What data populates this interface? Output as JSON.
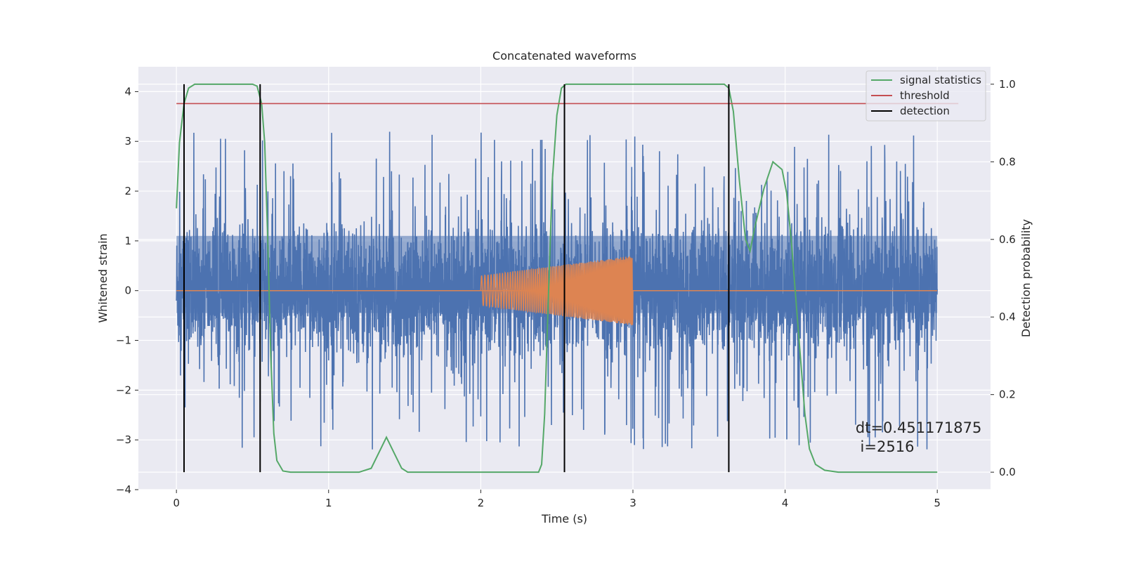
{
  "chart_data": {
    "type": "line",
    "title": "Concatenated waveforms",
    "xlabel": "Time (s)",
    "ylabel": "Whitened strain",
    "y2label": "Detection probability",
    "xlim": [
      -0.25,
      5.35
    ],
    "ylim": [
      -4.0,
      4.5
    ],
    "y2lim": [
      -0.045,
      1.045
    ],
    "xticks": [
      0,
      1,
      2,
      3,
      4,
      5
    ],
    "xtick_labels": [
      "0",
      "1",
      "2",
      "3",
      "4",
      "5"
    ],
    "yticks": [
      -4,
      -3,
      -2,
      -1,
      0,
      1,
      2,
      3,
      4
    ],
    "ytick_labels": [
      "−4",
      "−3",
      "−2",
      "−1",
      "0",
      "1",
      "2",
      "3",
      "4"
    ],
    "y2ticks": [
      0.0,
      0.2,
      0.4,
      0.6,
      0.8,
      1.0
    ],
    "y2tick_labels": [
      "0.0",
      "0.2",
      "0.4",
      "0.6",
      "0.8",
      "1.0"
    ],
    "grid": true,
    "legend_position": "top-right",
    "series": [
      {
        "name": "",
        "axis": "left",
        "kind": "noise",
        "color": "#4c72b0",
        "x_range": [
          0,
          5
        ],
        "amplitude": 1.2
      },
      {
        "name": "",
        "axis": "left",
        "kind": "chirp",
        "color": "#dd8452",
        "x_range": [
          2.0,
          3.0
        ],
        "amp_start": 0.3,
        "amp_end": 0.7
      },
      {
        "name": "",
        "axis": "left",
        "kind": "flat",
        "color": "#dd8452",
        "value": 0.0,
        "x_range": [
          0,
          5
        ]
      },
      {
        "name": "signal statistics",
        "axis": "right",
        "kind": "line",
        "color": "#55a868",
        "x": [
          0.0,
          0.02,
          0.05,
          0.08,
          0.12,
          0.15,
          0.5,
          0.53,
          0.56,
          0.58,
          0.6,
          0.62,
          0.64,
          0.66,
          0.7,
          0.75,
          1.2,
          1.28,
          1.33,
          1.38,
          1.43,
          1.48,
          1.52,
          2.38,
          2.4,
          2.42,
          2.44,
          2.47,
          2.5,
          2.53,
          2.56,
          2.6,
          2.65,
          3.6,
          3.63,
          3.66,
          3.7,
          3.74,
          3.77,
          3.8,
          3.86,
          3.92,
          3.98,
          4.01,
          4.04,
          4.07,
          4.1,
          4.13,
          4.16,
          4.2,
          4.26,
          4.35,
          5.0
        ],
        "y": [
          0.68,
          0.85,
          0.95,
          0.99,
          1.0,
          1.0,
          1.0,
          0.995,
          0.95,
          0.85,
          0.6,
          0.3,
          0.1,
          0.03,
          0.003,
          0.0,
          0.0,
          0.01,
          0.05,
          0.09,
          0.05,
          0.01,
          0.0,
          0.0,
          0.02,
          0.15,
          0.4,
          0.75,
          0.92,
          0.99,
          1.0,
          1.0,
          1.0,
          1.0,
          0.99,
          0.93,
          0.75,
          0.6,
          0.57,
          0.63,
          0.73,
          0.8,
          0.78,
          0.72,
          0.6,
          0.45,
          0.3,
          0.15,
          0.06,
          0.02,
          0.005,
          0.0,
          0.0
        ]
      },
      {
        "name": "threshold",
        "axis": "right",
        "kind": "hline",
        "color": "#c44e52",
        "value": 0.95,
        "x_range": [
          0,
          5
        ]
      },
      {
        "name": "detection",
        "axis": "right",
        "kind": "vlines",
        "color": "#000000",
        "x": [
          0.05,
          0.55,
          2.55,
          3.63
        ],
        "y_range": [
          0.0,
          1.0
        ]
      }
    ],
    "annotation": {
      "lines": [
        "dt=0.451171875",
        " i=2516"
      ],
      "x": 4.5,
      "y": -3.0
    }
  }
}
